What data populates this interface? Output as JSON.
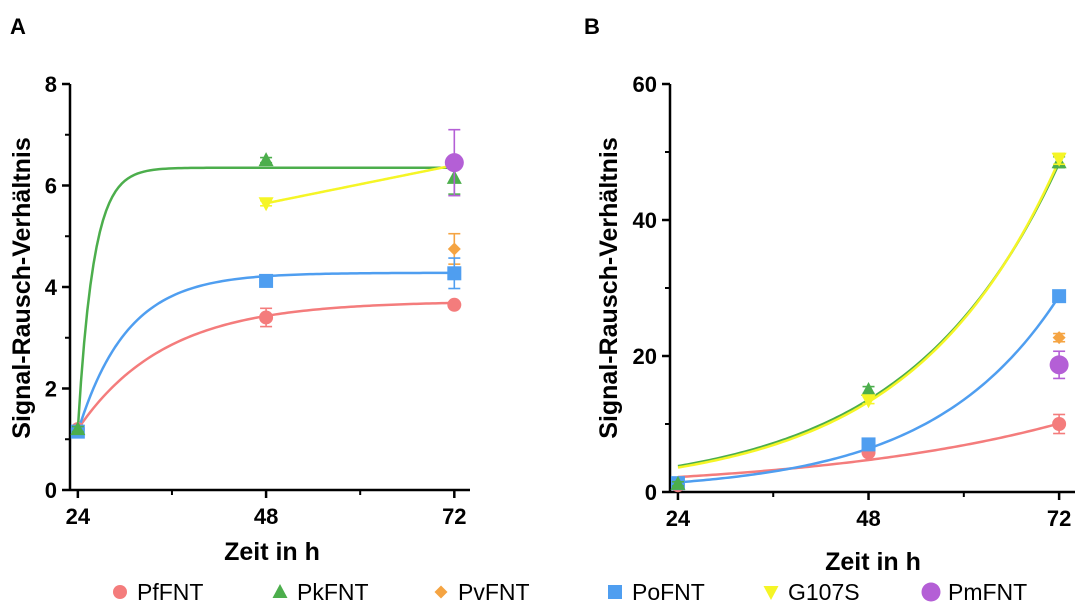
{
  "legend": [
    {
      "name": "PfFNT",
      "color": "#f47c7c",
      "marker": "circle"
    },
    {
      "name": "PkFNT",
      "color": "#4cae4c",
      "marker": "triangle-up"
    },
    {
      "name": "PvFNT",
      "color": "#f5a442",
      "marker": "diamond"
    },
    {
      "name": "PoFNT",
      "color": "#4f9ef0",
      "marker": "square"
    },
    {
      "name": "G107S",
      "color": "#f5f526",
      "marker": "triangle-down"
    },
    {
      "name": "PmFNT",
      "color": "#b45fd6",
      "marker": "big-circle"
    }
  ],
  "chart_data": [
    {
      "type": "scatter",
      "panel": "A",
      "xlabel": "Zeit in h",
      "ylabel": "Signal-Rausch-Verhältnis",
      "x_ticks": [
        24,
        48,
        72
      ],
      "y_ticks": [
        0,
        2,
        4,
        6,
        8
      ],
      "xlim": [
        23,
        74
      ],
      "ylim": [
        0,
        8
      ],
      "series": [
        {
          "name": "PfFNT",
          "x": [
            24,
            48,
            72
          ],
          "y": [
            1.2,
            3.4,
            3.65
          ],
          "err": [
            0.05,
            0.18,
            0.05
          ],
          "fit": {
            "type": "one-phase",
            "y0": 1.2,
            "plateau": 3.72,
            "k": 0.09
          }
        },
        {
          "name": "PkFNT",
          "x": [
            24,
            48,
            72
          ],
          "y": [
            1.2,
            6.5,
            6.15
          ],
          "err": [
            0.05,
            0.05,
            0.32
          ],
          "fit": {
            "type": "one-phase",
            "y0": 1.2,
            "plateau": 6.35,
            "k": 0.5
          }
        },
        {
          "name": "PvFNT",
          "x": [
            72
          ],
          "y": [
            4.75
          ],
          "err": [
            0.3
          ],
          "fit": null
        },
        {
          "name": "PoFNT",
          "x": [
            24,
            48,
            72
          ],
          "y": [
            1.15,
            4.12,
            4.27
          ],
          "err": [
            0.05,
            0.05,
            0.3
          ],
          "fit": {
            "type": "one-phase",
            "y0": 1.15,
            "plateau": 4.28,
            "k": 0.16
          }
        },
        {
          "name": "G107S",
          "x": [
            48,
            72
          ],
          "y": [
            5.65,
            6.4
          ],
          "err": [
            0.05,
            0.05
          ],
          "fit": {
            "type": "linear"
          }
        },
        {
          "name": "PmFNT",
          "x": [
            72
          ],
          "y": [
            6.45
          ],
          "err": [
            0.65
          ],
          "fit": null
        }
      ]
    },
    {
      "type": "scatter",
      "panel": "B",
      "xlabel": "Zeit in h",
      "ylabel": "Signal-Rausch-Verhältnis",
      "x_ticks": [
        24,
        48,
        72
      ],
      "y_ticks": [
        0,
        20,
        40,
        60
      ],
      "xlim": [
        23,
        74
      ],
      "ylim": [
        0,
        60
      ],
      "series": [
        {
          "name": "PfFNT",
          "x": [
            24,
            48,
            72
          ],
          "y": [
            1.0,
            5.8,
            10.0
          ],
          "err": [
            0.3,
            0.4,
            1.4
          ],
          "fit": {
            "type": "exponential",
            "a": 2.2,
            "k": 0.0317
          }
        },
        {
          "name": "PkFNT",
          "x": [
            24,
            48,
            72
          ],
          "y": [
            1.2,
            15.0,
            48.5
          ],
          "err": [
            0.3,
            0.5,
            0.8
          ],
          "fit": {
            "type": "exponential",
            "a": 3.8,
            "k": 0.053
          }
        },
        {
          "name": "PvFNT",
          "x": [
            72
          ],
          "y": [
            22.7
          ],
          "err": [
            0.6
          ],
          "fit": null
        },
        {
          "name": "PoFNT",
          "x": [
            24,
            48,
            72
          ],
          "y": [
            1.3,
            7.0,
            28.8
          ],
          "err": [
            0.3,
            0.4,
            0.8
          ],
          "fit": {
            "type": "exponential",
            "a": 1.42,
            "k": 0.0627
          }
        },
        {
          "name": "G107S",
          "x": [
            48,
            72
          ],
          "y": [
            13.5,
            49.0
          ],
          "err": [
            0.5,
            0.8
          ],
          "fit": {
            "type": "exponential",
            "a": 3.6,
            "k": 0.0543
          }
        },
        {
          "name": "PmFNT",
          "x": [
            72
          ],
          "y": [
            18.7
          ],
          "err": [
            2.0
          ],
          "fit": null
        }
      ]
    }
  ]
}
